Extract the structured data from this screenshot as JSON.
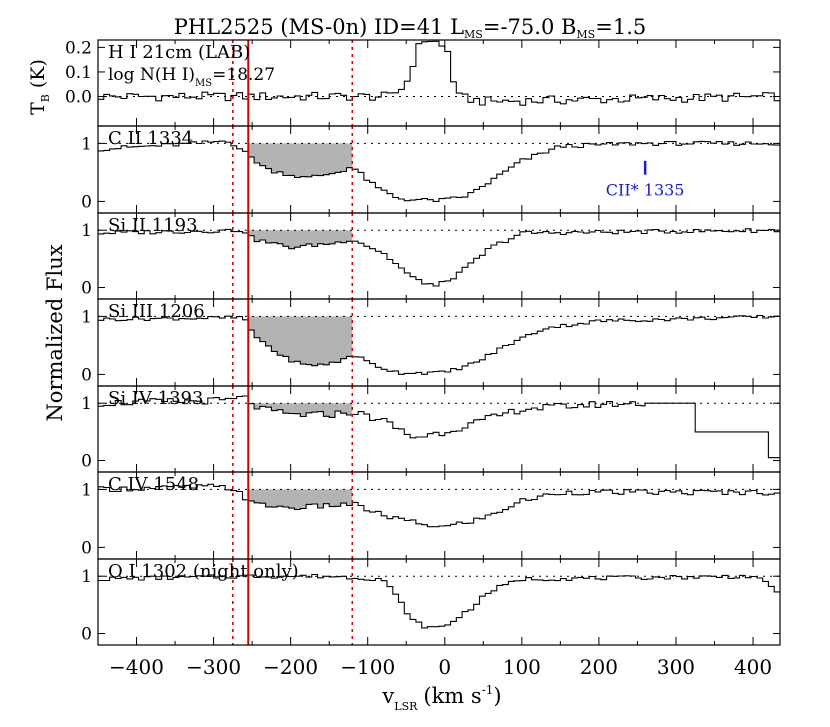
{
  "chart_data": {
    "type": "line",
    "title": "PHL2525 (MS-0n) ID=41 L",
    "title_sub1": "MS",
    "title_mid": "=-75.0 B",
    "title_sub2": "MS",
    "title_end": "=1.5",
    "xlabel": "v",
    "xlabel_sub": "LSR",
    "xlabel_units": "(km s",
    "xlabel_exp": "-1",
    "xlabel_close": ")",
    "ylabel": "Normalized Flux",
    "xlim": [
      -450,
      435
    ],
    "xticks": [
      -400,
      -300,
      -200,
      -100,
      0,
      100,
      200,
      300,
      400
    ],
    "vlines": {
      "solid_red": -255,
      "dotted_red": [
        -275,
        -120
      ]
    },
    "colors": {
      "line": "#000000",
      "red": "#d40000",
      "blue": "#1a1ad9",
      "shade": "#b3b3b3"
    },
    "panels": [
      {
        "id": "hi",
        "label": "H I 21cm (LAB)",
        "sublabel_main": "log N(H I)",
        "sublabel_sub": "MS",
        "sublabel_end": "=18.27",
        "ylabel_main": "T",
        "ylabel_sub": "B",
        "ylabel_unit": " (K)",
        "ylim": [
          -0.12,
          0.23
        ],
        "yticks": [
          0.2,
          0.1,
          0.0
        ],
        "ytick_labels": [
          "0.2",
          "0.1",
          "0.0"
        ],
        "reference": 0.0,
        "ripple": 0.018,
        "profile": [
          [
            -450,
            0.0
          ],
          [
            -70,
            0.0
          ],
          [
            -50,
            0.05
          ],
          [
            -40,
            0.15
          ],
          [
            -30,
            0.23
          ],
          [
            -15,
            0.23
          ],
          [
            5,
            0.18
          ],
          [
            15,
            0.0
          ],
          [
            50,
            -0.02
          ],
          [
            435,
            0.0
          ]
        ]
      },
      {
        "id": "cii",
        "label": "C II 1334",
        "ylim": [
          -0.2,
          1.3
        ],
        "yticks": [
          0,
          1
        ],
        "ytick_labels": [
          "0",
          "1"
        ],
        "reference": 1.0,
        "ripple": 0.035,
        "profile": [
          [
            -450,
            0.9
          ],
          [
            -400,
            0.94
          ],
          [
            -320,
            1.0
          ],
          [
            -280,
            1.05
          ],
          [
            -255,
            0.8
          ],
          [
            -230,
            0.55
          ],
          [
            -180,
            0.4
          ],
          [
            -140,
            0.5
          ],
          [
            -120,
            0.6
          ],
          [
            -90,
            0.25
          ],
          [
            -60,
            0.05
          ],
          [
            -30,
            0.02
          ],
          [
            0,
            0.02
          ],
          [
            30,
            0.1
          ],
          [
            60,
            0.35
          ],
          [
            100,
            0.7
          ],
          [
            150,
            0.95
          ],
          [
            250,
            1.0
          ],
          [
            435,
            1.0
          ]
        ],
        "shade": [
          -255,
          -120
        ],
        "annotation": {
          "text": "CII* 1335",
          "v": 260,
          "flux": 0.58
        }
      },
      {
        "id": "siii",
        "label": "Si II 1193",
        "ylim": [
          -0.2,
          1.3
        ],
        "yticks": [
          0,
          1
        ],
        "ytick_labels": [
          "0",
          "1"
        ],
        "reference": 1.0,
        "ripple": 0.035,
        "profile": [
          [
            -450,
            0.95
          ],
          [
            -260,
            1.0
          ],
          [
            -250,
            0.85
          ],
          [
            -200,
            0.7
          ],
          [
            -140,
            0.78
          ],
          [
            -120,
            0.85
          ],
          [
            -80,
            0.6
          ],
          [
            -40,
            0.15
          ],
          [
            -10,
            0.02
          ],
          [
            20,
            0.25
          ],
          [
            60,
            0.7
          ],
          [
            100,
            0.95
          ],
          [
            435,
            1.0
          ]
        ],
        "shade": [
          -255,
          -120
        ]
      },
      {
        "id": "siiii",
        "label": "Si III 1206",
        "ylim": [
          -0.2,
          1.3
        ],
        "yticks": [
          0,
          1
        ],
        "ytick_labels": [
          "0",
          "1"
        ],
        "reference": 1.0,
        "ripple": 0.03,
        "profile": [
          [
            -450,
            0.95
          ],
          [
            -260,
            0.98
          ],
          [
            -250,
            0.7
          ],
          [
            -210,
            0.3
          ],
          [
            -180,
            0.15
          ],
          [
            -140,
            0.2
          ],
          [
            -120,
            0.35
          ],
          [
            -90,
            0.15
          ],
          [
            -60,
            0.03
          ],
          [
            0,
            0.03
          ],
          [
            40,
            0.2
          ],
          [
            80,
            0.5
          ],
          [
            130,
            0.8
          ],
          [
            200,
            0.92
          ],
          [
            435,
            1.0
          ]
        ],
        "shade": [
          -255,
          -120
        ]
      },
      {
        "id": "siiv",
        "label": "Si IV 1393",
        "ylim": [
          -0.2,
          1.3
        ],
        "yticks": [
          0,
          1
        ],
        "ytick_labels": [
          "0",
          "1"
        ],
        "reference": 1.0,
        "ripple": 0.06,
        "profile": [
          [
            -450,
            1.0
          ],
          [
            -280,
            1.05
          ],
          [
            -260,
            1.1
          ],
          [
            -240,
            0.9
          ],
          [
            -200,
            0.8
          ],
          [
            -150,
            0.8
          ],
          [
            -120,
            0.85
          ],
          [
            -80,
            0.7
          ],
          [
            -40,
            0.4
          ],
          [
            0,
            0.5
          ],
          [
            50,
            0.7
          ],
          [
            100,
            0.9
          ],
          [
            200,
            0.98
          ],
          [
            260,
            1.0
          ]
        ],
        "profile_tail": [
          [
            260,
            1.0
          ],
          [
            325,
            1.0
          ],
          [
            325,
            0.5
          ],
          [
            420,
            0.5
          ],
          [
            420,
            0.05
          ],
          [
            435,
            0.05
          ]
        ],
        "shade": [
          -255,
          -120
        ]
      },
      {
        "id": "civ",
        "label": "C IV 1548",
        "ylim": [
          -0.2,
          1.3
        ],
        "yticks": [
          0,
          1
        ],
        "ytick_labels": [
          "0",
          "1"
        ],
        "reference": 1.0,
        "ripple": 0.045,
        "profile": [
          [
            -450,
            1.0
          ],
          [
            -300,
            1.05
          ],
          [
            -270,
            1.0
          ],
          [
            -250,
            0.75
          ],
          [
            -200,
            0.68
          ],
          [
            -150,
            0.72
          ],
          [
            -120,
            0.75
          ],
          [
            -80,
            0.55
          ],
          [
            -30,
            0.4
          ],
          [
            0,
            0.35
          ],
          [
            50,
            0.5
          ],
          [
            100,
            0.8
          ],
          [
            150,
            0.95
          ],
          [
            435,
            0.95
          ]
        ],
        "shade": [
          -255,
          -120
        ]
      },
      {
        "id": "oi",
        "label": "O I 1302 (night only)",
        "ylim": [
          -0.2,
          1.3
        ],
        "yticks": [
          0,
          1
        ],
        "ytick_labels": [
          "0",
          "1"
        ],
        "reference": 1.0,
        "ripple": 0.035,
        "profile": [
          [
            -450,
            0.95
          ],
          [
            -260,
            1.0
          ],
          [
            -150,
            1.0
          ],
          [
            -80,
            0.95
          ],
          [
            -60,
            0.6
          ],
          [
            -40,
            0.2
          ],
          [
            -20,
            0.1
          ],
          [
            0,
            0.12
          ],
          [
            30,
            0.4
          ],
          [
            60,
            0.75
          ],
          [
            100,
            0.95
          ],
          [
            400,
            1.0
          ],
          [
            420,
            0.85
          ],
          [
            435,
            0.7
          ]
        ]
      }
    ]
  }
}
